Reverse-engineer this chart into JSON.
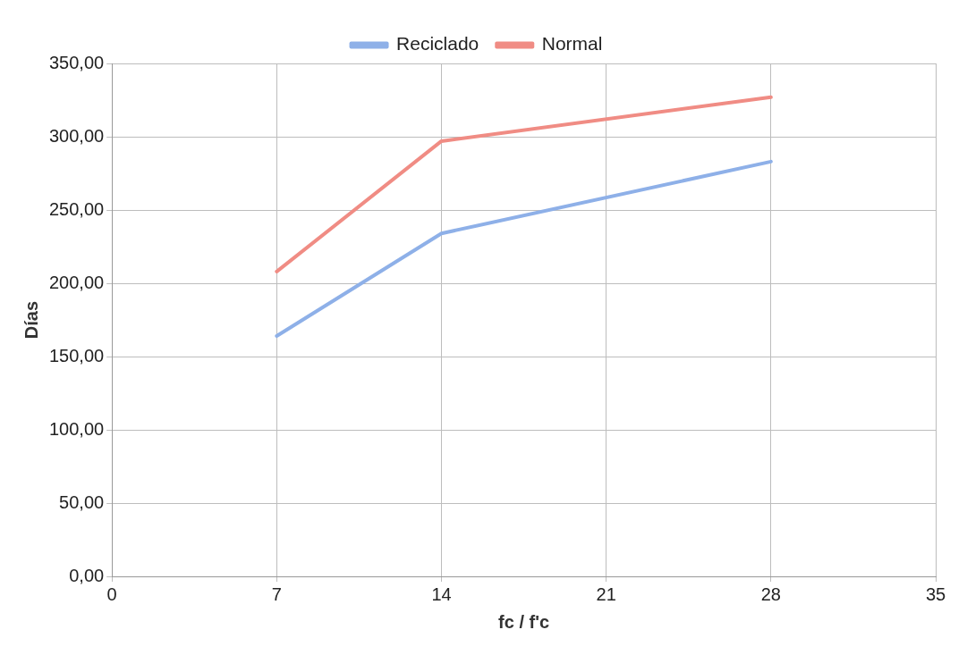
{
  "chart_data": {
    "type": "line",
    "xlabel": "fc / f'c",
    "ylabel": "Días",
    "x": [
      7,
      14,
      28
    ],
    "series": [
      {
        "name": "Reciclado",
        "color": "#8eb0e8",
        "values": [
          164,
          234,
          283
        ]
      },
      {
        "name": "Normal",
        "color": "#f08c84",
        "values": [
          208,
          297,
          327
        ]
      }
    ],
    "xlim": [
      0,
      35
    ],
    "xticks": [
      0,
      7,
      14,
      21,
      28,
      35
    ],
    "ylim": [
      0,
      350
    ],
    "yticks": [
      {
        "value": 0,
        "label": "0,00"
      },
      {
        "value": 50,
        "label": "50,00"
      },
      {
        "value": 100,
        "label": "100,00"
      },
      {
        "value": 150,
        "label": "150,00"
      },
      {
        "value": 200,
        "label": "200,00"
      },
      {
        "value": 250,
        "label": "250,00"
      },
      {
        "value": 300,
        "label": "300,00"
      },
      {
        "value": 350,
        "label": "350,00"
      }
    ],
    "grid": true,
    "legend": "top",
    "marker": "none",
    "line_style": "solid"
  }
}
